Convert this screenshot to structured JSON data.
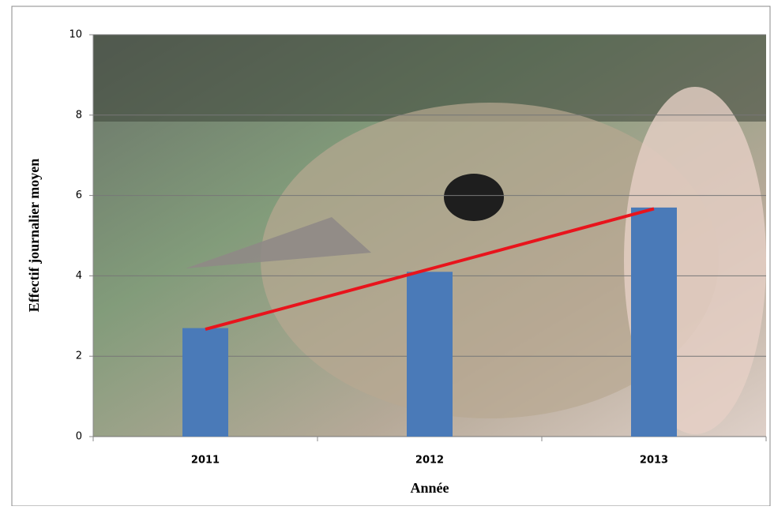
{
  "chart_data": {
    "type": "bar",
    "x_label": "Année",
    "y_label": "Effectif journalier moyen",
    "categories": [
      "2011",
      "2012",
      "2013"
    ],
    "values": [
      2.7,
      4.1,
      5.7
    ],
    "color": "#4a7ab8",
    "trend": {
      "color": "#e8141c",
      "values": [
        2.67,
        4.17,
        5.67
      ]
    },
    "ylim": [
      0,
      10
    ],
    "yticks": [
      0,
      2,
      4,
      6,
      8,
      10
    ],
    "grid": true
  }
}
